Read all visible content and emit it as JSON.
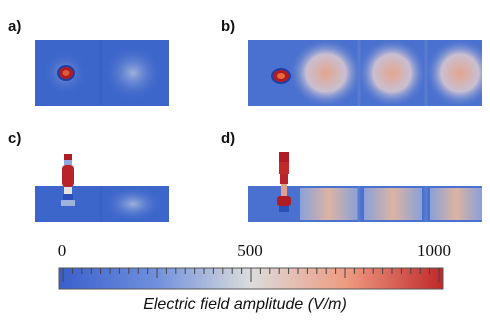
{
  "panels": [
    {
      "label": "a)"
    },
    {
      "label": "b)"
    },
    {
      "label": "c)"
    },
    {
      "label": "d)"
    }
  ],
  "colorbar": {
    "ticks": [
      "0",
      "500",
      "1000"
    ],
    "caption": "Electric field amplitude (V/m)",
    "colors": {
      "low": "#3a5fcd",
      "mid": "#dcdcdc",
      "high": "#c0282a"
    }
  }
}
